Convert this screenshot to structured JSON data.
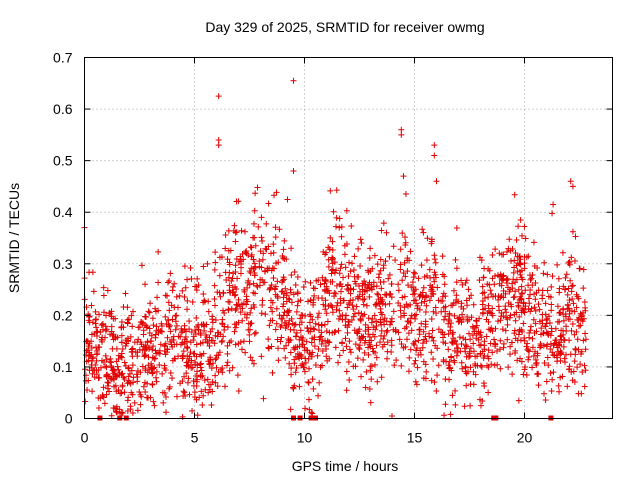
{
  "chart_data": {
    "type": "scatter",
    "title": "Day 329 of 2025, SRMTID for receiver owmg",
    "xlabel": "GPS time / hours",
    "ylabel": "SRMTID / TECUs",
    "xlim": [
      0,
      24
    ],
    "ylim": [
      0,
      0.7
    ],
    "x_ticks": [
      "0",
      "5",
      "10",
      "15",
      "20"
    ],
    "y_ticks": [
      "0",
      "0.1",
      "0.2",
      "0.3",
      "0.4",
      "0.5",
      "0.6",
      "0.7"
    ],
    "grid": true,
    "marker": "+",
    "color": "#e00000",
    "outliers": [
      {
        "x": 6.1,
        "y": 0.625
      },
      {
        "x": 9.5,
        "y": 0.655
      },
      {
        "x": 14.4,
        "y": 0.56
      },
      {
        "x": 14.4,
        "y": 0.55
      },
      {
        "x": 15.9,
        "y": 0.53
      },
      {
        "x": 6.1,
        "y": 0.54
      },
      {
        "x": 6.1,
        "y": 0.53
      },
      {
        "x": 14.5,
        "y": 0.47
      },
      {
        "x": 16.0,
        "y": 0.46
      },
      {
        "x": 22.1,
        "y": 0.46
      },
      {
        "x": 22.2,
        "y": 0.45
      },
      {
        "x": 21.3,
        "y": 0.415
      },
      {
        "x": 9.5,
        "y": 0.48
      },
      {
        "x": 0.0,
        "y": 0.37
      },
      {
        "x": 15.9,
        "y": 0.51
      }
    ],
    "zero_points_x": [
      0.7,
      1.6,
      1.9,
      9.5,
      9.8,
      10.3,
      10.5,
      18.6,
      18.7,
      21.2
    ],
    "envelope": [
      {
        "x": 0.0,
        "y": 0.17
      },
      {
        "x": 0.5,
        "y": 0.13
      },
      {
        "x": 1.0,
        "y": 0.12
      },
      {
        "x": 1.5,
        "y": 0.1
      },
      {
        "x": 2.0,
        "y": 0.1
      },
      {
        "x": 2.5,
        "y": 0.12
      },
      {
        "x": 3.0,
        "y": 0.13
      },
      {
        "x": 3.5,
        "y": 0.15
      },
      {
        "x": 4.0,
        "y": 0.17
      },
      {
        "x": 4.5,
        "y": 0.15
      },
      {
        "x": 5.0,
        "y": 0.14
      },
      {
        "x": 5.5,
        "y": 0.14
      },
      {
        "x": 6.0,
        "y": 0.2
      },
      {
        "x": 6.5,
        "y": 0.22
      },
      {
        "x": 7.0,
        "y": 0.24
      },
      {
        "x": 7.5,
        "y": 0.26
      },
      {
        "x": 8.0,
        "y": 0.27
      },
      {
        "x": 8.5,
        "y": 0.26
      },
      {
        "x": 9.0,
        "y": 0.2
      },
      {
        "x": 9.5,
        "y": 0.18
      },
      {
        "x": 10.0,
        "y": 0.12
      },
      {
        "x": 10.5,
        "y": 0.17
      },
      {
        "x": 11.0,
        "y": 0.22
      },
      {
        "x": 11.5,
        "y": 0.24
      },
      {
        "x": 12.0,
        "y": 0.22
      },
      {
        "x": 12.5,
        "y": 0.19
      },
      {
        "x": 13.0,
        "y": 0.2
      },
      {
        "x": 13.5,
        "y": 0.22
      },
      {
        "x": 14.0,
        "y": 0.2
      },
      {
        "x": 14.5,
        "y": 0.24
      },
      {
        "x": 15.0,
        "y": 0.2
      },
      {
        "x": 15.5,
        "y": 0.2
      },
      {
        "x": 16.0,
        "y": 0.21
      },
      {
        "x": 16.5,
        "y": 0.16
      },
      {
        "x": 17.0,
        "y": 0.17
      },
      {
        "x": 17.5,
        "y": 0.15
      },
      {
        "x": 18.0,
        "y": 0.16
      },
      {
        "x": 18.5,
        "y": 0.2
      },
      {
        "x": 19.0,
        "y": 0.21
      },
      {
        "x": 19.5,
        "y": 0.24
      },
      {
        "x": 20.0,
        "y": 0.22
      },
      {
        "x": 20.5,
        "y": 0.2
      },
      {
        "x": 21.0,
        "y": 0.18
      },
      {
        "x": 21.5,
        "y": 0.16
      },
      {
        "x": 22.0,
        "y": 0.2
      },
      {
        "x": 22.5,
        "y": 0.19
      },
      {
        "x": 22.8,
        "y": 0.16
      }
    ],
    "spread": 0.07,
    "x_end": 22.8
  }
}
